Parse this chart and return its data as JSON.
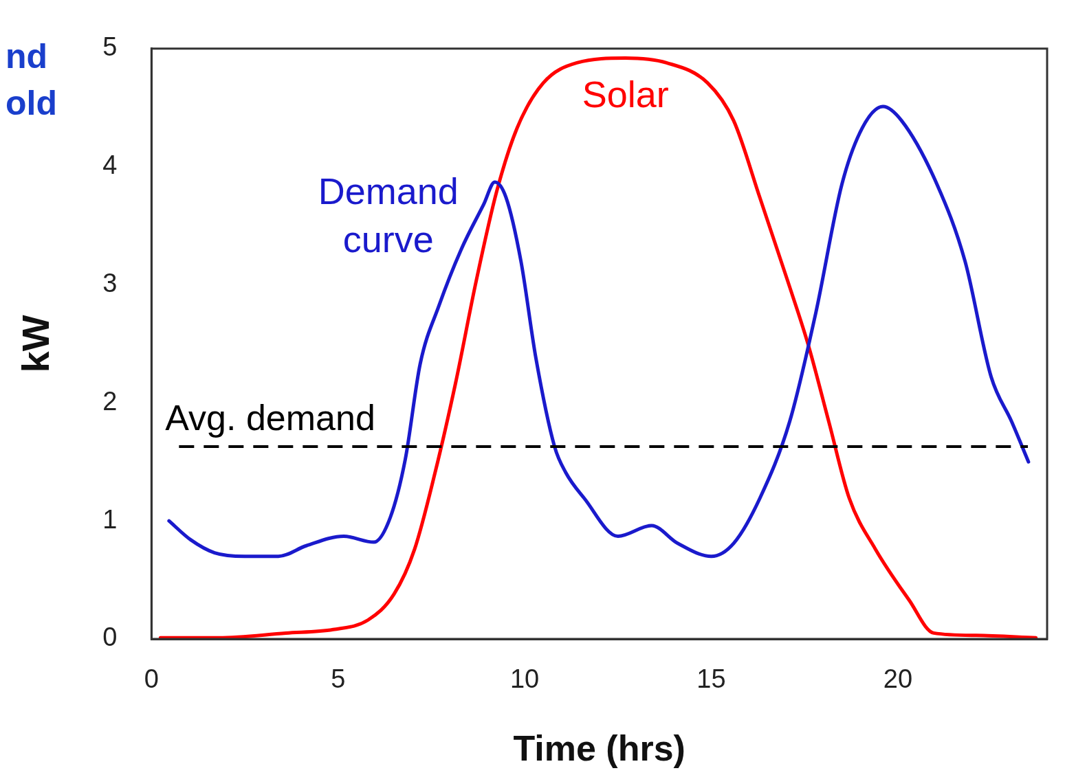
{
  "chart_data": {
    "type": "line",
    "xlabel": "Time (hrs)",
    "ylabel": "kW",
    "xlim": [
      0,
      24
    ],
    "xticks": [
      0,
      5,
      10,
      15,
      20
    ],
    "ylim": [
      0,
      5
    ],
    "yticks": [
      0,
      1,
      2,
      3,
      4,
      5
    ],
    "grid": false,
    "legend": false,
    "marker": "none",
    "line_style": "solid",
    "annotations": [
      "nd",
      "old"
    ],
    "ref_lines": [
      {
        "axis": "y",
        "value": 1.63,
        "label": "Avg. demand",
        "color": "#000000",
        "line_style": "dashed"
      }
    ],
    "series": [
      {
        "name": "Demand curve",
        "color": "#1a1acc",
        "x": [
          0.47,
          1.05,
          1.69,
          2.5,
          3.4,
          4.15,
          5.15,
          5.96,
          6.4,
          6.8,
          7.2,
          7.7,
          8.3,
          8.9,
          9.2,
          9.5,
          9.9,
          10.3,
          10.8,
          11.1,
          11.6,
          12.5,
          13.4,
          14.1,
          15.0,
          15.6,
          16.3,
          17.1,
          17.8,
          18.5,
          19.05,
          19.6,
          20.1,
          21.05,
          21.8,
          22.5,
          23.05,
          23.5
        ],
        "values": [
          1.0,
          0.84,
          0.73,
          0.7,
          0.7,
          0.79,
          0.87,
          0.82,
          1.03,
          1.52,
          2.33,
          2.82,
          3.3,
          3.68,
          3.87,
          3.74,
          3.2,
          2.38,
          1.63,
          1.41,
          1.19,
          0.87,
          0.96,
          0.81,
          0.7,
          0.81,
          1.19,
          1.84,
          2.76,
          3.85,
          4.33,
          4.51,
          4.39,
          3.85,
          3.2,
          2.22,
          1.84,
          1.5
        ]
      },
      {
        "name": "Solar",
        "color": "#ff0000",
        "x": [
          0.24,
          1.8,
          3.6,
          4.87,
          5.8,
          6.5,
          7.05,
          7.6,
          8.15,
          8.7,
          9.25,
          9.8,
          10.5,
          11.4,
          12.7,
          13.8,
          14.9,
          15.6,
          16.3,
          17.05,
          17.6,
          18.15,
          18.7,
          19.4,
          20.3,
          20.96,
          22.1,
          23.7
        ],
        "values": [
          0.01,
          0.01,
          0.05,
          0.08,
          0.16,
          0.38,
          0.76,
          1.41,
          2.17,
          3.03,
          3.79,
          4.33,
          4.71,
          4.88,
          4.92,
          4.88,
          4.71,
          4.39,
          3.74,
          3.03,
          2.49,
          1.84,
          1.19,
          0.76,
          0.33,
          0.05,
          0.03,
          0.01
        ]
      }
    ]
  }
}
